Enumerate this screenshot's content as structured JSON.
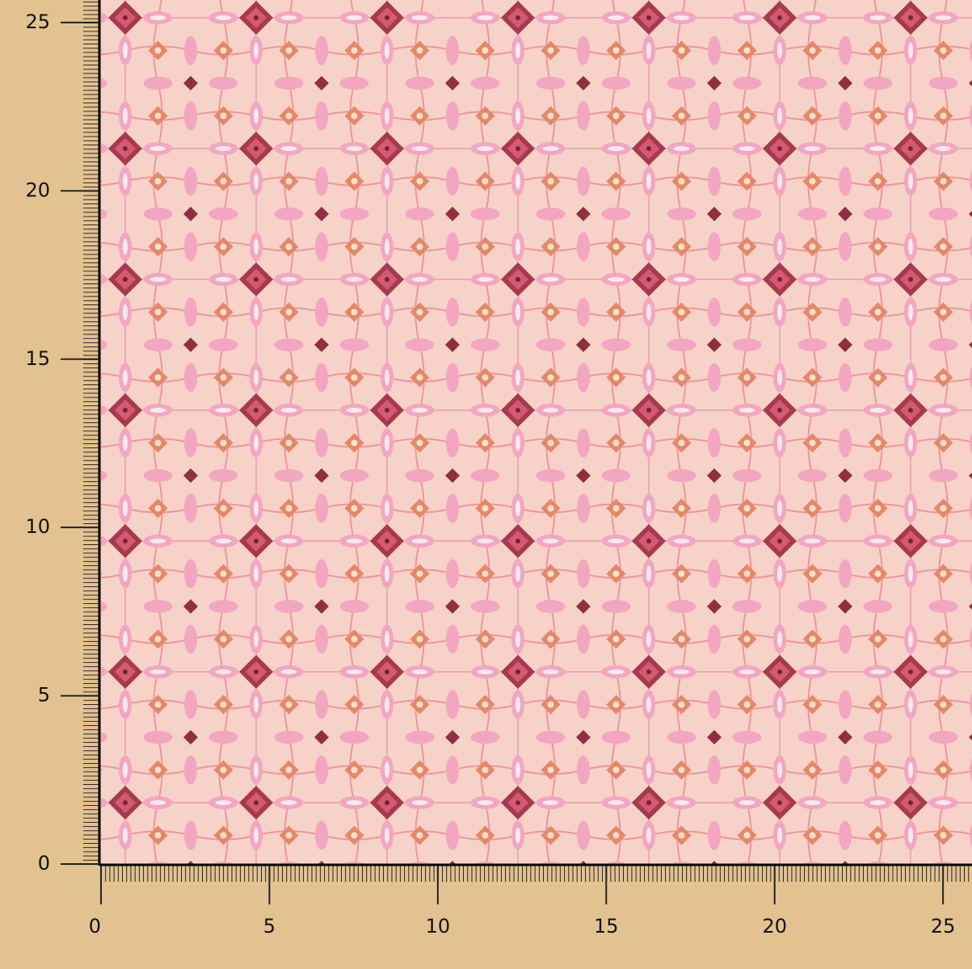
{
  "rulers": {
    "xlim": [
      0,
      25.86
    ],
    "ylim": [
      0,
      25.67
    ],
    "xticks": [
      0,
      5,
      10,
      15,
      20,
      25
    ],
    "yticks": [
      0,
      5,
      10,
      15,
      20,
      25
    ]
  }
}
